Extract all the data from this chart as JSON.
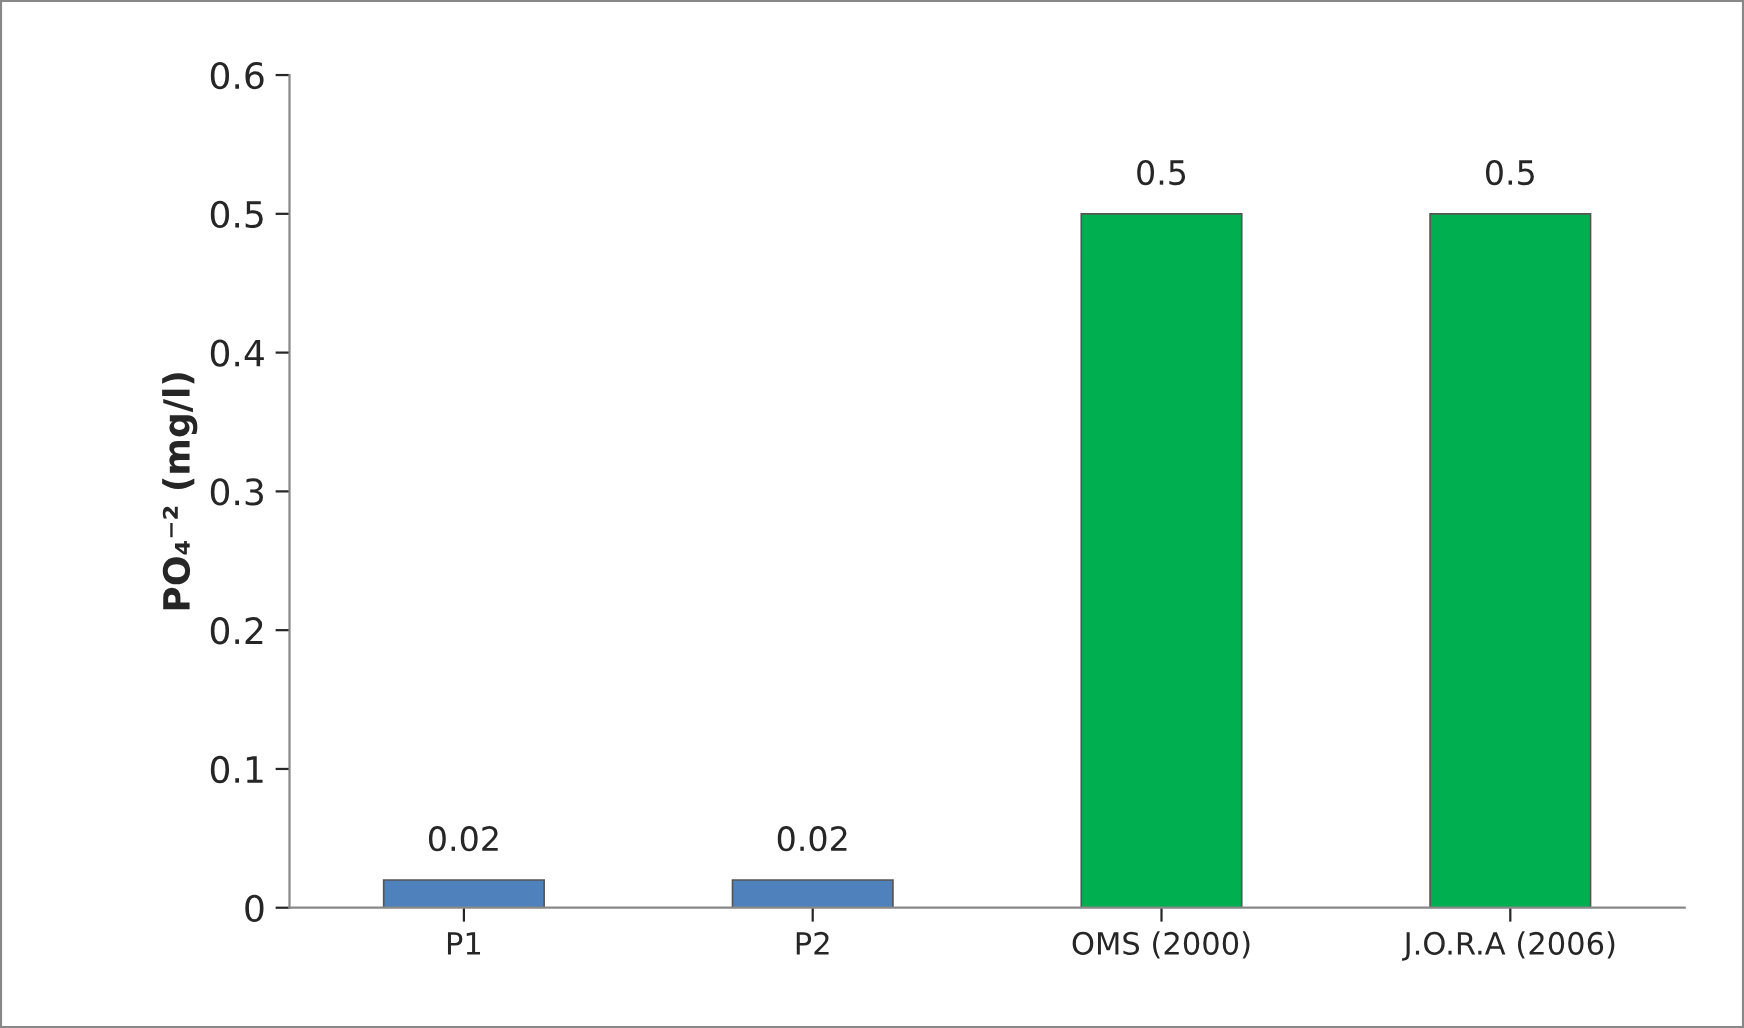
{
  "chart_data": {
    "type": "bar",
    "ylabel": "PO₄⁻² (mg/l)",
    "categories": [
      "P1",
      "P2",
      "OMS (2000)",
      "J.O.R.A (2006)"
    ],
    "values": [
      0.02,
      0.02,
      0.5,
      0.5
    ],
    "colors": [
      "#4f81bd",
      "#4f81bd",
      "#00b050",
      "#00b050"
    ],
    "ylim": [
      0,
      0.6
    ],
    "yticks": [
      0,
      0.1,
      0.2,
      0.3,
      0.4,
      0.5,
      0.6
    ],
    "data_labels": true,
    "grid": false,
    "legend": false
  }
}
